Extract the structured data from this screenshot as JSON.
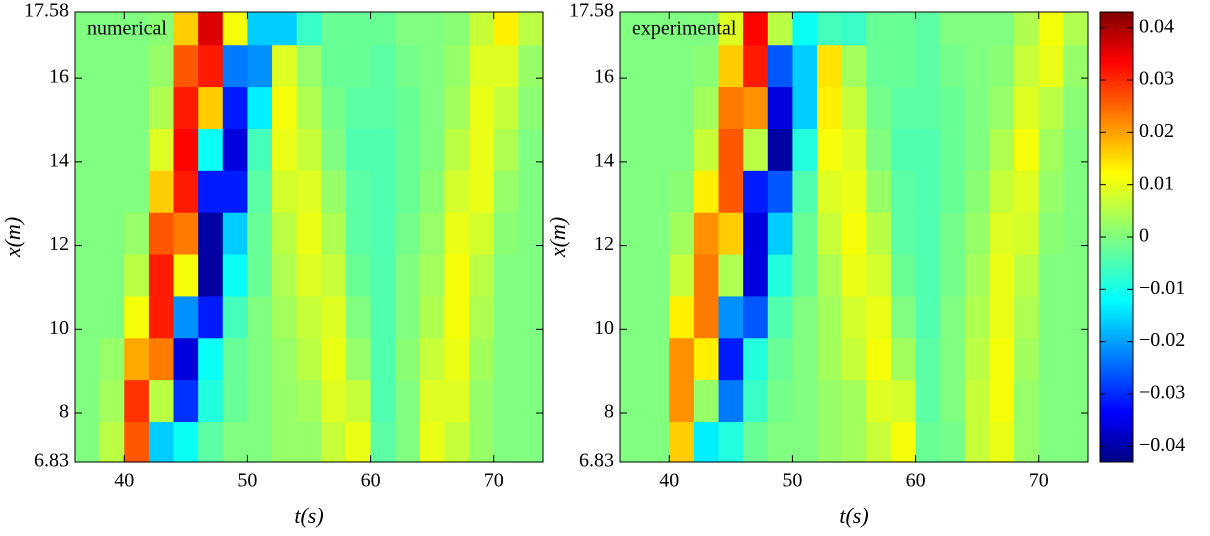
{
  "chart_data": [
    {
      "type": "heatmap",
      "annotation": "numerical",
      "xlabel": "t(s)",
      "ylabel": "x(m)",
      "xlim": [
        36,
        74
      ],
      "ylim": [
        6.83,
        17.58
      ],
      "xticks": [
        40,
        50,
        60,
        70
      ],
      "yticks": [
        6.83,
        8,
        10,
        12,
        14,
        16,
        17.58
      ],
      "colormap": "jet",
      "clim": [
        -0.043,
        0.043
      ],
      "x": [
        37,
        39,
        41,
        43,
        45,
        47,
        49,
        51,
        53,
        55,
        57,
        59,
        61,
        63,
        65,
        67,
        69,
        71,
        73
      ],
      "y": [
        7.3,
        8.3,
        9.3,
        10.3,
        11.3,
        12.3,
        13.3,
        14.3,
        15.3,
        16.3,
        17.3
      ],
      "values": [
        [
          0,
          0.005,
          0.025,
          -0.015,
          -0.01,
          -0.003,
          0,
          0,
          0.002,
          0.002,
          0.006,
          0.009,
          -0.003,
          0,
          0.009,
          0.006,
          0.002,
          0,
          0
        ],
        [
          0,
          0.003,
          0.028,
          0.005,
          -0.028,
          -0.008,
          -0.002,
          0,
          0.002,
          0.003,
          0.008,
          0.006,
          -0.004,
          0,
          0.008,
          0.008,
          0.002,
          0,
          0
        ],
        [
          0,
          0.002,
          0.018,
          0.022,
          -0.035,
          -0.01,
          -0.002,
          0,
          0.002,
          0.005,
          0.009,
          0.002,
          -0.004,
          0.001,
          0.006,
          0.009,
          0.003,
          0,
          0
        ],
        [
          0,
          0,
          0.01,
          0.03,
          -0.02,
          -0.03,
          -0.005,
          0,
          0.003,
          0.006,
          0.008,
          0,
          -0.004,
          0,
          0.004,
          0.01,
          0.004,
          0,
          0
        ],
        [
          0,
          0,
          0.005,
          0.03,
          0.01,
          -0.04,
          -0.01,
          -0.002,
          0.004,
          0.008,
          0.006,
          -0.002,
          -0.004,
          0,
          0.003,
          0.01,
          0.005,
          0,
          0
        ],
        [
          0,
          0,
          0.002,
          0.025,
          0.022,
          -0.04,
          -0.015,
          -0.002,
          0.005,
          0.009,
          0.004,
          -0.003,
          -0.004,
          -0.001,
          0.002,
          0.009,
          0.007,
          0.001,
          0
        ],
        [
          0,
          0,
          0,
          0.015,
          0.03,
          -0.03,
          -0.03,
          -0.003,
          0.007,
          0.008,
          0.002,
          -0.003,
          -0.004,
          -0.002,
          0.001,
          0.007,
          0.009,
          0.002,
          0
        ],
        [
          0,
          0,
          0,
          0.008,
          0.032,
          -0.01,
          -0.035,
          -0.005,
          0.009,
          0.006,
          0,
          -0.004,
          -0.004,
          -0.002,
          0,
          0.005,
          0.009,
          0.004,
          0
        ],
        [
          0,
          0,
          0,
          0.004,
          0.03,
          0.015,
          -0.03,
          -0.012,
          0.01,
          0.004,
          -0.001,
          -0.003,
          -0.003,
          -0.002,
          0,
          0.003,
          0.009,
          0.006,
          0.001
        ],
        [
          0,
          0,
          0,
          0.002,
          0.025,
          0.03,
          -0.022,
          -0.02,
          0.008,
          0.002,
          -0.002,
          -0.002,
          -0.003,
          -0.001,
          0,
          0.002,
          0.008,
          0.008,
          0.002
        ],
        [
          0,
          0,
          0,
          0.001,
          0.015,
          0.035,
          0.01,
          -0.015,
          -0.015,
          -0.006,
          -0.002,
          -0.002,
          -0.002,
          0,
          0,
          0.001,
          0.006,
          0.012,
          0.005
        ]
      ]
    },
    {
      "type": "heatmap",
      "annotation": "experimental",
      "xlabel": "t(s)",
      "ylabel": "x(m)",
      "xlim": [
        36,
        74
      ],
      "ylim": [
        6.83,
        17.58
      ],
      "xticks": [
        40,
        50,
        60,
        70
      ],
      "yticks": [
        6.83,
        8,
        10,
        12,
        14,
        16,
        17.58
      ],
      "colormap": "jet",
      "clim": [
        -0.043,
        0.043
      ],
      "colorbar_ticks": [
        {
          "value": -0.04,
          "label": "−0.04"
        },
        {
          "value": -0.03,
          "label": "−0.03"
        },
        {
          "value": -0.02,
          "label": "−0.02"
        },
        {
          "value": -0.01,
          "label": "−0.01"
        },
        0,
        0.01,
        0.02,
        0.03,
        0.04
      ],
      "x": [
        37,
        39,
        41,
        43,
        45,
        47,
        49,
        51,
        53,
        55,
        57,
        59,
        61,
        63,
        65,
        67,
        69,
        71,
        73
      ],
      "y": [
        7.3,
        8.3,
        9.3,
        10.3,
        11.3,
        12.3,
        13.3,
        14.3,
        15.3,
        16.3,
        17.3
      ],
      "values": [
        [
          0,
          0,
          0.015,
          -0.012,
          -0.008,
          -0.002,
          0,
          0,
          0.002,
          0.003,
          0.006,
          0.01,
          -0.002,
          -0.001,
          0.006,
          0.009,
          0.002,
          0,
          0
        ],
        [
          0,
          0,
          0.02,
          0.002,
          -0.022,
          -0.006,
          -0.001,
          0,
          0.002,
          0.003,
          0.008,
          0.007,
          -0.003,
          0,
          0.006,
          0.01,
          0.002,
          0,
          0
        ],
        [
          0,
          0,
          0.02,
          0.012,
          -0.03,
          -0.008,
          -0.002,
          0,
          0.003,
          0.006,
          0.01,
          0.003,
          -0.003,
          0,
          0.005,
          0.01,
          0.003,
          0,
          0
        ],
        [
          0,
          0,
          0.012,
          0.022,
          -0.02,
          -0.025,
          -0.004,
          0,
          0.003,
          0.007,
          0.009,
          0,
          -0.004,
          0,
          0.004,
          0.009,
          0.004,
          0,
          0
        ],
        [
          0,
          0,
          0.006,
          0.022,
          0.004,
          -0.035,
          -0.008,
          -0.002,
          0.004,
          0.009,
          0.007,
          -0.002,
          -0.004,
          -0.001,
          0.003,
          0.009,
          0.005,
          0,
          0
        ],
        [
          0,
          0,
          0.003,
          0.02,
          0.015,
          -0.035,
          -0.015,
          -0.002,
          0.006,
          0.01,
          0.005,
          -0.003,
          -0.004,
          -0.001,
          0.002,
          0.008,
          0.007,
          0.001,
          0
        ],
        [
          0,
          0,
          0.001,
          0.012,
          0.025,
          -0.03,
          -0.025,
          -0.004,
          0.008,
          0.009,
          0.002,
          -0.003,
          -0.004,
          -0.002,
          0.001,
          0.006,
          0.008,
          0.002,
          0
        ],
        [
          0,
          0,
          0,
          0.006,
          0.025,
          0.005,
          -0.04,
          -0.008,
          0.01,
          0.008,
          0,
          -0.004,
          -0.004,
          -0.002,
          0,
          0.004,
          0.01,
          0.003,
          0
        ],
        [
          0,
          0,
          0,
          0.003,
          0.022,
          0.02,
          -0.035,
          -0.015,
          0.012,
          0.006,
          -0.001,
          -0.003,
          -0.003,
          -0.002,
          0,
          0.002,
          0.008,
          0.005,
          0.001
        ],
        [
          0,
          0,
          0,
          0.001,
          0.015,
          0.03,
          -0.025,
          -0.015,
          0.013,
          0.003,
          -0.002,
          -0.002,
          -0.003,
          -0.001,
          0,
          0.001,
          0.006,
          0.009,
          0.002
        ],
        [
          0,
          0,
          0,
          0,
          0.008,
          0.032,
          0.005,
          -0.01,
          -0.005,
          -0.006,
          -0.002,
          -0.002,
          -0.003,
          0,
          0,
          0,
          0.004,
          0.01,
          0.004
        ]
      ]
    }
  ]
}
